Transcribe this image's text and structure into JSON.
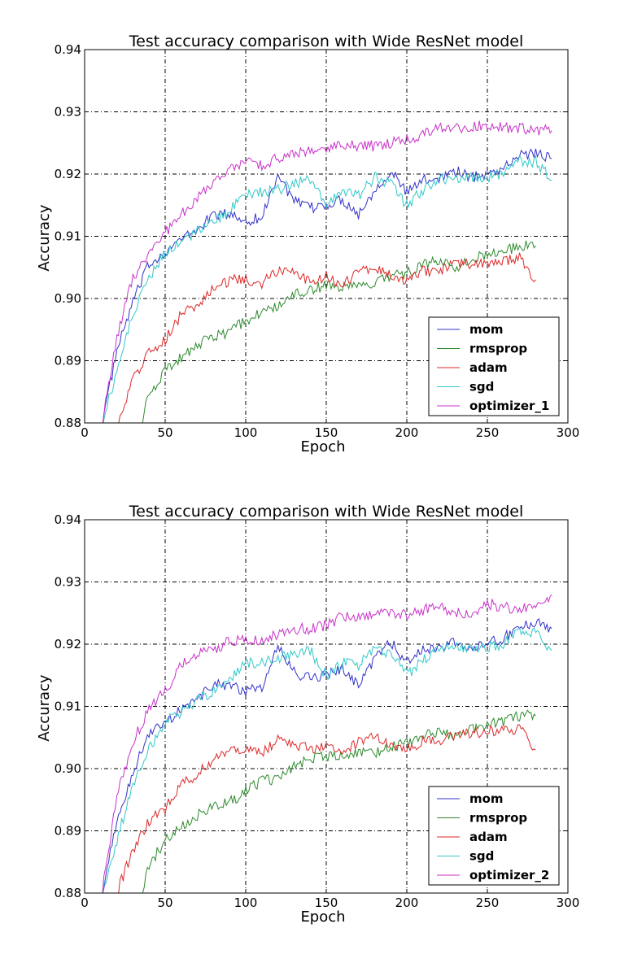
{
  "chart_data": [
    {
      "type": "line",
      "title": "Test accuracy comparison with Wide ResNet model",
      "xlabel": "Epoch",
      "ylabel": "Accuracy",
      "xlim": [
        0,
        300
      ],
      "ylim": [
        0.88,
        0.94
      ],
      "xticks": [
        "0",
        "50",
        "100",
        "150",
        "200",
        "250",
        "300"
      ],
      "yticks": [
        "0.88",
        "0.89",
        "0.90",
        "0.91",
        "0.92",
        "0.93",
        "0.94"
      ],
      "grid": true,
      "legend_position": "lower-right",
      "x": [
        10,
        20,
        30,
        40,
        50,
        60,
        70,
        80,
        90,
        100,
        110,
        120,
        130,
        140,
        150,
        160,
        170,
        180,
        190,
        200,
        210,
        220,
        230,
        240,
        250,
        260,
        270,
        280,
        290
      ],
      "series": [
        {
          "name": "mom",
          "color": "#3232c8",
          "values": [
            0.879,
            0.8915,
            0.8995,
            0.9055,
            0.9075,
            0.9095,
            0.911,
            0.9135,
            0.9135,
            0.9125,
            0.913,
            0.92,
            0.9155,
            0.9145,
            0.915,
            0.916,
            0.9135,
            0.9175,
            0.9205,
            0.917,
            0.919,
            0.9195,
            0.9205,
            0.9195,
            0.92,
            0.921,
            0.923,
            0.9235,
            0.9225
          ]
        },
        {
          "name": "rmsprop",
          "color": "#2e8b2e",
          "values": null,
          "start": 35,
          "values_from_35": [
            0.88,
            0.8845,
            0.8885,
            0.8905,
            0.8925,
            0.894,
            0.8945,
            0.8965,
            0.898,
            0.8985,
            0.9005,
            0.9015,
            0.902,
            0.902,
            0.9025,
            0.9025,
            0.9035,
            0.904,
            0.9055,
            0.906,
            0.905,
            0.9065,
            0.907,
            0.9075,
            0.9085,
            0.9085
          ]
        },
        {
          "name": "adam",
          "color": "#dc2828",
          "start": 20,
          "values_from_20": [
            0.88,
            0.887,
            0.8915,
            0.8935,
            0.8975,
            0.899,
            0.9015,
            0.903,
            0.903,
            0.9025,
            0.9045,
            0.904,
            0.903,
            0.9035,
            0.902,
            0.9045,
            0.905,
            0.904,
            0.903,
            0.9045,
            0.9045,
            0.9055,
            0.9055,
            0.906,
            0.906,
            0.9065,
            0.903
          ]
        },
        {
          "name": "sgd",
          "color": "#32c8c8",
          "values": [
            0.879,
            0.8885,
            0.8975,
            0.903,
            0.9075,
            0.909,
            0.911,
            0.9125,
            0.914,
            0.917,
            0.917,
            0.9175,
            0.9185,
            0.919,
            0.915,
            0.917,
            0.9165,
            0.9195,
            0.9185,
            0.915,
            0.9175,
            0.919,
            0.9195,
            0.9195,
            0.9195,
            0.92,
            0.922,
            0.922,
            0.919
          ]
        },
        {
          "name": "optimizer_1",
          "color": "#c832c8",
          "values": [
            0.879,
            0.8935,
            0.9035,
            0.907,
            0.9105,
            0.9135,
            0.916,
            0.9185,
            0.9205,
            0.922,
            0.9215,
            0.9225,
            0.9235,
            0.9235,
            0.924,
            0.925,
            0.9245,
            0.9245,
            0.925,
            0.9255,
            0.9265,
            0.9275,
            0.9275,
            0.9275,
            0.928,
            0.9275,
            0.9275,
            0.927,
            0.927
          ]
        }
      ]
    },
    {
      "type": "line",
      "title": "Test accuracy comparison with Wide ResNet model",
      "xlabel": "Epoch",
      "ylabel": "Accuracy",
      "xlim": [
        0,
        300
      ],
      "ylim": [
        0.88,
        0.94
      ],
      "xticks": [
        "0",
        "50",
        "100",
        "150",
        "200",
        "250",
        "300"
      ],
      "yticks": [
        "0.88",
        "0.89",
        "0.90",
        "0.91",
        "0.92",
        "0.93",
        "0.94"
      ],
      "grid": true,
      "legend_position": "lower-right",
      "x": [
        10,
        20,
        30,
        40,
        50,
        60,
        70,
        80,
        90,
        100,
        110,
        120,
        130,
        140,
        150,
        160,
        170,
        180,
        190,
        200,
        210,
        220,
        230,
        240,
        250,
        260,
        270,
        280,
        290
      ],
      "series": [
        {
          "name": "mom",
          "color": "#3232c8",
          "values": [
            0.879,
            0.8915,
            0.8995,
            0.9055,
            0.9075,
            0.9095,
            0.911,
            0.9135,
            0.9135,
            0.9125,
            0.913,
            0.92,
            0.9155,
            0.9145,
            0.915,
            0.916,
            0.9135,
            0.9175,
            0.9205,
            0.917,
            0.919,
            0.9195,
            0.9205,
            0.9195,
            0.92,
            0.921,
            0.923,
            0.9235,
            0.9225
          ]
        },
        {
          "name": "rmsprop",
          "color": "#2e8b2e",
          "start": 35,
          "values_from_35": [
            0.88,
            0.8845,
            0.8885,
            0.8905,
            0.8925,
            0.894,
            0.8945,
            0.8965,
            0.898,
            0.8985,
            0.9005,
            0.9015,
            0.902,
            0.902,
            0.9025,
            0.9025,
            0.9035,
            0.904,
            0.9055,
            0.906,
            0.905,
            0.9065,
            0.907,
            0.9075,
            0.9085,
            0.9085
          ]
        },
        {
          "name": "adam",
          "color": "#dc2828",
          "start": 20,
          "values_from_20": [
            0.88,
            0.887,
            0.8915,
            0.8935,
            0.8975,
            0.899,
            0.9015,
            0.903,
            0.903,
            0.9025,
            0.9045,
            0.904,
            0.903,
            0.9035,
            0.902,
            0.9045,
            0.905,
            0.904,
            0.903,
            0.9045,
            0.9045,
            0.9055,
            0.9055,
            0.906,
            0.906,
            0.9065,
            0.903
          ]
        },
        {
          "name": "sgd",
          "color": "#32c8c8",
          "values": [
            0.879,
            0.8885,
            0.8975,
            0.903,
            0.9075,
            0.909,
            0.911,
            0.9125,
            0.914,
            0.917,
            0.917,
            0.9175,
            0.9185,
            0.919,
            0.915,
            0.917,
            0.9165,
            0.9195,
            0.9185,
            0.915,
            0.9175,
            0.919,
            0.9195,
            0.9195,
            0.9195,
            0.92,
            0.922,
            0.922,
            0.919
          ]
        },
        {
          "name": "optimizer_2",
          "color": "#c832c8",
          "values": [
            0.879,
            0.8955,
            0.9045,
            0.9095,
            0.9125,
            0.9165,
            0.9185,
            0.919,
            0.9205,
            0.9205,
            0.9205,
            0.9215,
            0.9225,
            0.9225,
            0.923,
            0.9245,
            0.9245,
            0.925,
            0.925,
            0.925,
            0.9255,
            0.926,
            0.925,
            0.925,
            0.9265,
            0.926,
            0.9255,
            0.9265,
            0.928
          ]
        }
      ]
    }
  ]
}
